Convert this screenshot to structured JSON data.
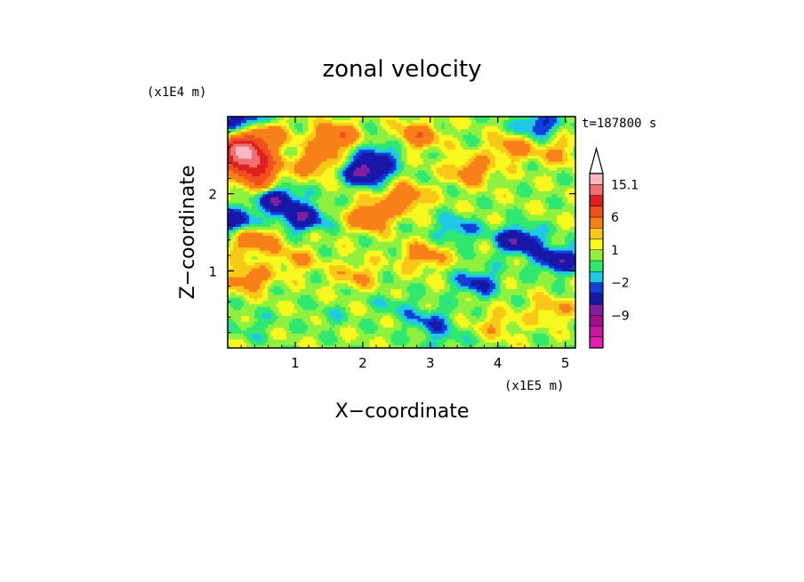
{
  "chart_data": {
    "type": "heatmap",
    "title": "zonal velocity",
    "xlabel": "X−coordinate",
    "ylabel": "Z−coordinate",
    "x_unit": "(x1E5 m)",
    "y_unit": "(x1E4 m)",
    "time_label": "t=187800 s",
    "xlim": [
      0,
      5.15
    ],
    "ylim": [
      0,
      3.0
    ],
    "x_ticks": [
      1,
      2,
      3,
      4,
      5
    ],
    "y_ticks": [
      1,
      2
    ],
    "x_tick_labels": [
      "1",
      "2",
      "3",
      "4",
      "5"
    ],
    "y_tick_labels": [
      "1",
      "2"
    ],
    "colorbar": {
      "labels": [
        "15.1",
        "6",
        "1",
        "−2",
        "−9"
      ],
      "label_values": [
        15.1,
        6,
        1,
        -2,
        -9
      ],
      "top_arrow": true,
      "levels": [
        -15,
        -12,
        -9,
        -6,
        -3,
        -2,
        -1,
        0,
        1,
        2,
        3,
        6,
        9,
        12,
        15.1
      ],
      "colors": [
        "#e020b0",
        "#c818a0",
        "#a0108c",
        "#8020a0",
        "#1818a8",
        "#1040d8",
        "#20c8e8",
        "#30e870",
        "#90f040",
        "#f8f820",
        "#f8c818",
        "#f88018",
        "#f05020",
        "#e02020",
        "#f07070",
        "#f8b8c0"
      ]
    },
    "features": [
      {
        "x": 0.6,
        "z": 2.75,
        "u": 3.5
      },
      {
        "x": 0.4,
        "z": 2.35,
        "u": 9.5
      },
      {
        "x": 0.35,
        "z": 2.8,
        "u": 3.0
      },
      {
        "x": 0.25,
        "z": 2.95,
        "u": -6.0
      },
      {
        "x": 0.5,
        "z": 2.1,
        "u": 4.0
      },
      {
        "x": 0.7,
        "z": 1.95,
        "u": -7.0
      },
      {
        "x": 0.1,
        "z": 1.65,
        "u": -5.0
      },
      {
        "x": 0.4,
        "z": 1.4,
        "u": 5.0
      },
      {
        "x": 1.3,
        "z": 2.4,
        "u": 4.0
      },
      {
        "x": 1.6,
        "z": 2.75,
        "u": 5.5
      },
      {
        "x": 2.05,
        "z": 2.3,
        "u": -8.0
      },
      {
        "x": 2.8,
        "z": 2.75,
        "u": 4.5
      },
      {
        "x": 2.1,
        "z": 1.7,
        "u": 5.0
      },
      {
        "x": 2.6,
        "z": 1.95,
        "u": 5.0
      },
      {
        "x": 3.6,
        "z": 2.3,
        "u": 4.0
      },
      {
        "x": 4.2,
        "z": 2.6,
        "u": 3.5
      },
      {
        "x": 4.9,
        "z": 2.55,
        "u": 2.5
      },
      {
        "x": 1.1,
        "z": 1.7,
        "u": -6.0
      },
      {
        "x": 1.0,
        "z": 1.15,
        "u": 2.5
      },
      {
        "x": 4.3,
        "z": 1.4,
        "u": -6.5
      },
      {
        "x": 4.9,
        "z": 1.15,
        "u": -6.0
      },
      {
        "x": 3.4,
        "z": 1.55,
        "u": -3.0
      },
      {
        "x": 3.7,
        "z": 0.85,
        "u": -4.0
      },
      {
        "x": 2.9,
        "z": 1.2,
        "u": 3.5
      },
      {
        "x": 2.5,
        "z": 0.55,
        "u": -1.5
      },
      {
        "x": 1.9,
        "z": 0.95,
        "u": 2.5
      },
      {
        "x": 0.3,
        "z": 0.9,
        "u": 4.0
      },
      {
        "x": 0.4,
        "z": 0.3,
        "u": -1.2
      },
      {
        "x": 4.0,
        "z": 0.3,
        "u": 2.0
      },
      {
        "x": 3.2,
        "z": 0.1,
        "u": -1.5
      },
      {
        "x": 4.8,
        "z": 0.5,
        "u": 2.5
      },
      {
        "x": 4.6,
        "z": 2.9,
        "u": -4.0
      },
      {
        "x": 0.2,
        "z": 2.55,
        "u": 14.0
      },
      {
        "x": 2.3,
        "z": 2.55,
        "u": -3.0
      },
      {
        "x": 1.5,
        "z": 0.4,
        "u": -1.0
      },
      {
        "x": 3.0,
        "z": 0.35,
        "u": -3.0
      }
    ]
  }
}
